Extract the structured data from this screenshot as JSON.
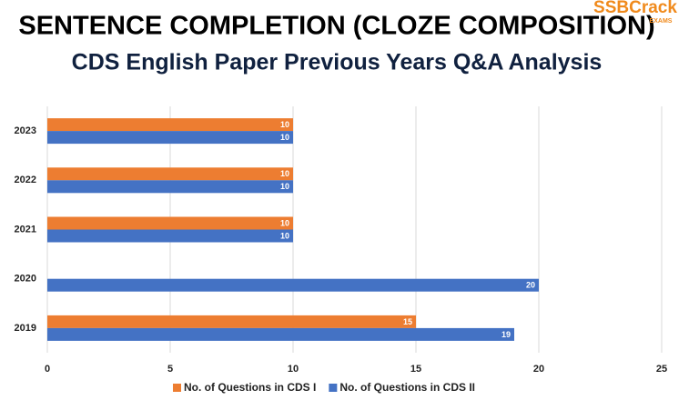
{
  "logo": {
    "brand": "SSBCrack",
    "sub": "EXAMS"
  },
  "chart_data": {
    "type": "hbar",
    "title": "SENTENCE COMPLETION (CLOZE COMPOSITION)",
    "subtitle": "CDS English Paper Previous Years Q&A Analysis",
    "categories": [
      "2023",
      "2022",
      "2021",
      "2020",
      "2019"
    ],
    "series": [
      {
        "name": "No. of Questions in CDS I",
        "color": "#ed7d31",
        "values": [
          10,
          10,
          10,
          null,
          15
        ]
      },
      {
        "name": "No. of Questions in CDS II",
        "color": "#4472c4",
        "values": [
          10,
          10,
          10,
          20,
          19
        ]
      }
    ],
    "xlim": [
      0,
      25
    ],
    "xticks": [
      0,
      5,
      10,
      15,
      20,
      25
    ],
    "grid": true,
    "legend": "bottom"
  }
}
